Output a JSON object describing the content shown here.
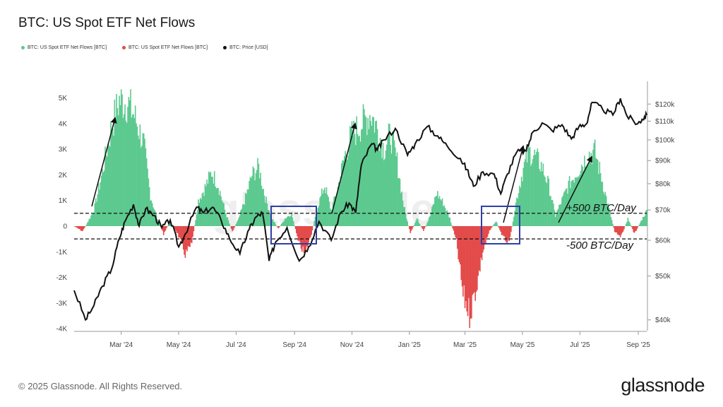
{
  "title": "BTC: US Spot ETF Net Flows",
  "legend": [
    {
      "label": "BTC: US Spot ETF Net Flows [BTC]",
      "color": "#5cc98f"
    },
    {
      "label": "BTC: US Spot ETF Net Flows [BTC]",
      "color": "#e34a4a"
    },
    {
      "label": "BTC: Price [USD]",
      "color": "#111111"
    }
  ],
  "footer": "© 2025 Glassnode. All Rights Reserved.",
  "brand": "glassnode",
  "watermark": "glassnode",
  "annotations": {
    "upper": "+500 BTC/Day",
    "lower": "-500 BTC/Day"
  },
  "chart_data": {
    "type": "bar",
    "title": "BTC: US Spot ETF Net Flows",
    "left_axis": {
      "ticks": [
        5000,
        4000,
        3000,
        2000,
        1000,
        0,
        -1000,
        -2000,
        -3000,
        -4000
      ],
      "tick_labels": [
        "5K",
        "4K",
        "3K",
        "2K",
        "1K",
        "0",
        "-1K",
        "-2K",
        "-3K",
        "-4K"
      ],
      "ylim": [
        -4000,
        5000
      ]
    },
    "right_axis": {
      "scale": "log",
      "ticks": [
        120000,
        110000,
        100000,
        90000,
        80000,
        70000,
        60000,
        50000,
        40000
      ],
      "tick_labels": [
        "$120k",
        "$110k",
        "$100k",
        "$90k",
        "$80k",
        "$70k",
        "$60k",
        "$50k",
        "$40k"
      ],
      "ylim": [
        38000,
        130000
      ]
    },
    "x_ticks": [
      {
        "label": "Mar '24",
        "date": "2024-03-01"
      },
      {
        "label": "May '24",
        "date": "2024-05-01"
      },
      {
        "label": "Jul '24",
        "date": "2024-07-01"
      },
      {
        "label": "Sep '24",
        "date": "2024-09-01"
      },
      {
        "label": "Nov '24",
        "date": "2024-11-01"
      },
      {
        "label": "Jan '25",
        "date": "2025-01-01"
      },
      {
        "label": "Mar '25",
        "date": "2025-03-01"
      },
      {
        "label": "May '25",
        "date": "2025-05-01"
      },
      {
        "label": "Jul '25",
        "date": "2025-07-01"
      },
      {
        "label": "Sep '25",
        "date": "2025-09-01"
      }
    ],
    "xlim": [
      "2024-01-11",
      "2025-09-10"
    ],
    "reference_lines": [
      500,
      -500
    ],
    "flow_series": {
      "name": "BTC: US Spot ETF Net Flows [BTC]",
      "positive_color": "#5cc98f",
      "negative_color": "#e34a4a",
      "points": [
        [
          "2024-01-11",
          0
        ],
        [
          "2024-01-20",
          -200
        ],
        [
          "2024-02-01",
          600
        ],
        [
          "2024-02-10",
          2100
        ],
        [
          "2024-02-20",
          3900
        ],
        [
          "2024-02-28",
          4900
        ],
        [
          "2024-03-08",
          4800
        ],
        [
          "2024-03-15",
          4300
        ],
        [
          "2024-03-25",
          3200
        ],
        [
          "2024-04-01",
          1200
        ],
        [
          "2024-04-08",
          300
        ],
        [
          "2024-04-15",
          -300
        ],
        [
          "2024-04-22",
          200
        ],
        [
          "2024-04-30",
          -300
        ],
        [
          "2024-05-08",
          -1100
        ],
        [
          "2024-05-15",
          -700
        ],
        [
          "2024-05-22",
          1000
        ],
        [
          "2024-05-29",
          1500
        ],
        [
          "2024-06-05",
          2100
        ],
        [
          "2024-06-12",
          1600
        ],
        [
          "2024-06-20",
          500
        ],
        [
          "2024-06-27",
          -200
        ],
        [
          "2024-07-04",
          300
        ],
        [
          "2024-07-11",
          1100
        ],
        [
          "2024-07-18",
          2000
        ],
        [
          "2024-07-25",
          2300
        ],
        [
          "2024-08-01",
          1100
        ],
        [
          "2024-08-08",
          300
        ],
        [
          "2024-08-15",
          -100
        ],
        [
          "2024-08-22",
          300
        ],
        [
          "2024-08-29",
          500
        ],
        [
          "2024-09-05",
          -600
        ],
        [
          "2024-09-12",
          -1100
        ],
        [
          "2024-09-19",
          -300
        ],
        [
          "2024-09-26",
          800
        ],
        [
          "2024-10-03",
          1600
        ],
        [
          "2024-10-10",
          600
        ],
        [
          "2024-10-17",
          1500
        ],
        [
          "2024-10-24",
          2700
        ],
        [
          "2024-10-31",
          3500
        ],
        [
          "2024-11-07",
          3800
        ],
        [
          "2024-11-14",
          4100
        ],
        [
          "2024-11-21",
          4400
        ],
        [
          "2024-11-28",
          3800
        ],
        [
          "2024-12-05",
          3000
        ],
        [
          "2024-12-12",
          3600
        ],
        [
          "2024-12-19",
          2500
        ],
        [
          "2024-12-26",
          800
        ],
        [
          "2025-01-02",
          -300
        ],
        [
          "2025-01-09",
          300
        ],
        [
          "2025-01-16",
          -200
        ],
        [
          "2025-01-23",
          400
        ],
        [
          "2025-01-30",
          1300
        ],
        [
          "2025-02-06",
          900
        ],
        [
          "2025-02-13",
          300
        ],
        [
          "2025-02-20",
          -600
        ],
        [
          "2025-02-27",
          -2700
        ],
        [
          "2025-03-06",
          -3400
        ],
        [
          "2025-03-13",
          -2400
        ],
        [
          "2025-03-20",
          -1000
        ],
        [
          "2025-03-27",
          -200
        ],
        [
          "2025-04-03",
          200
        ],
        [
          "2025-04-10",
          -400
        ],
        [
          "2025-04-17",
          -700
        ],
        [
          "2025-04-24",
          900
        ],
        [
          "2025-05-01",
          2100
        ],
        [
          "2025-05-08",
          2900
        ],
        [
          "2025-05-15",
          2700
        ],
        [
          "2025-05-22",
          2300
        ],
        [
          "2025-05-29",
          1600
        ],
        [
          "2025-06-05",
          400
        ],
        [
          "2025-06-12",
          1000
        ],
        [
          "2025-06-19",
          1600
        ],
        [
          "2025-06-26",
          2000
        ],
        [
          "2025-07-03",
          2400
        ],
        [
          "2025-07-10",
          2800
        ],
        [
          "2025-07-17",
          2900
        ],
        [
          "2025-07-24",
          1900
        ],
        [
          "2025-07-31",
          800
        ],
        [
          "2025-08-07",
          -200
        ],
        [
          "2025-08-14",
          -400
        ],
        [
          "2025-08-21",
          300
        ],
        [
          "2025-08-28",
          -300
        ],
        [
          "2025-09-04",
          200
        ],
        [
          "2025-09-10",
          600
        ]
      ]
    },
    "price_series": {
      "name": "BTC: Price [USD]",
      "color": "#111111",
      "points": [
        [
          "2024-01-11",
          46500
        ],
        [
          "2024-01-23",
          40000
        ],
        [
          "2024-02-01",
          43000
        ],
        [
          "2024-02-10",
          47500
        ],
        [
          "2024-02-20",
          52000
        ],
        [
          "2024-02-28",
          60500
        ],
        [
          "2024-03-05",
          66000
        ],
        [
          "2024-03-14",
          72000
        ],
        [
          "2024-03-20",
          64500
        ],
        [
          "2024-03-27",
          70500
        ],
        [
          "2024-04-05",
          68000
        ],
        [
          "2024-04-13",
          64000
        ],
        [
          "2024-04-22",
          66500
        ],
        [
          "2024-05-01",
          58000
        ],
        [
          "2024-05-08",
          62000
        ],
        [
          "2024-05-20",
          71000
        ],
        [
          "2024-05-27",
          69000
        ],
        [
          "2024-06-06",
          71000
        ],
        [
          "2024-06-15",
          66500
        ],
        [
          "2024-06-24",
          60500
        ],
        [
          "2024-07-05",
          56000
        ],
        [
          "2024-07-15",
          63500
        ],
        [
          "2024-07-22",
          67500
        ],
        [
          "2024-07-29",
          69000
        ],
        [
          "2024-08-05",
          54000
        ],
        [
          "2024-08-12",
          59500
        ],
        [
          "2024-08-24",
          64000
        ],
        [
          "2024-09-06",
          54000
        ],
        [
          "2024-09-16",
          58000
        ],
        [
          "2024-09-27",
          66000
        ],
        [
          "2024-10-10",
          60000
        ],
        [
          "2024-10-20",
          69000
        ],
        [
          "2024-10-29",
          72500
        ],
        [
          "2024-11-05",
          69000
        ],
        [
          "2024-11-11",
          88000
        ],
        [
          "2024-11-22",
          98000
        ],
        [
          "2024-11-28",
          95000
        ],
        [
          "2024-12-05",
          100000
        ],
        [
          "2024-12-17",
          106000
        ],
        [
          "2024-12-30",
          92500
        ],
        [
          "2025-01-07",
          98000
        ],
        [
          "2025-01-20",
          107000
        ],
        [
          "2025-01-31",
          102000
        ],
        [
          "2025-02-10",
          97000
        ],
        [
          "2025-02-24",
          91000
        ],
        [
          "2025-03-03",
          86000
        ],
        [
          "2025-03-10",
          79000
        ],
        [
          "2025-03-20",
          85000
        ],
        [
          "2025-04-01",
          84000
        ],
        [
          "2025-04-08",
          76000
        ],
        [
          "2025-04-15",
          84000
        ],
        [
          "2025-04-25",
          94000
        ],
        [
          "2025-05-05",
          94500
        ],
        [
          "2025-05-12",
          104000
        ],
        [
          "2025-05-22",
          109000
        ],
        [
          "2025-06-01",
          105000
        ],
        [
          "2025-06-12",
          108000
        ],
        [
          "2025-06-22",
          100500
        ],
        [
          "2025-06-30",
          107000
        ],
        [
          "2025-07-08",
          108500
        ],
        [
          "2025-07-14",
          121000
        ],
        [
          "2025-07-25",
          117000
        ],
        [
          "2025-08-05",
          113500
        ],
        [
          "2025-08-13",
          123500
        ],
        [
          "2025-08-20",
          113000
        ],
        [
          "2025-08-31",
          108500
        ],
        [
          "2025-09-05",
          111000
        ],
        [
          "2025-09-10",
          113500
        ]
      ]
    }
  }
}
